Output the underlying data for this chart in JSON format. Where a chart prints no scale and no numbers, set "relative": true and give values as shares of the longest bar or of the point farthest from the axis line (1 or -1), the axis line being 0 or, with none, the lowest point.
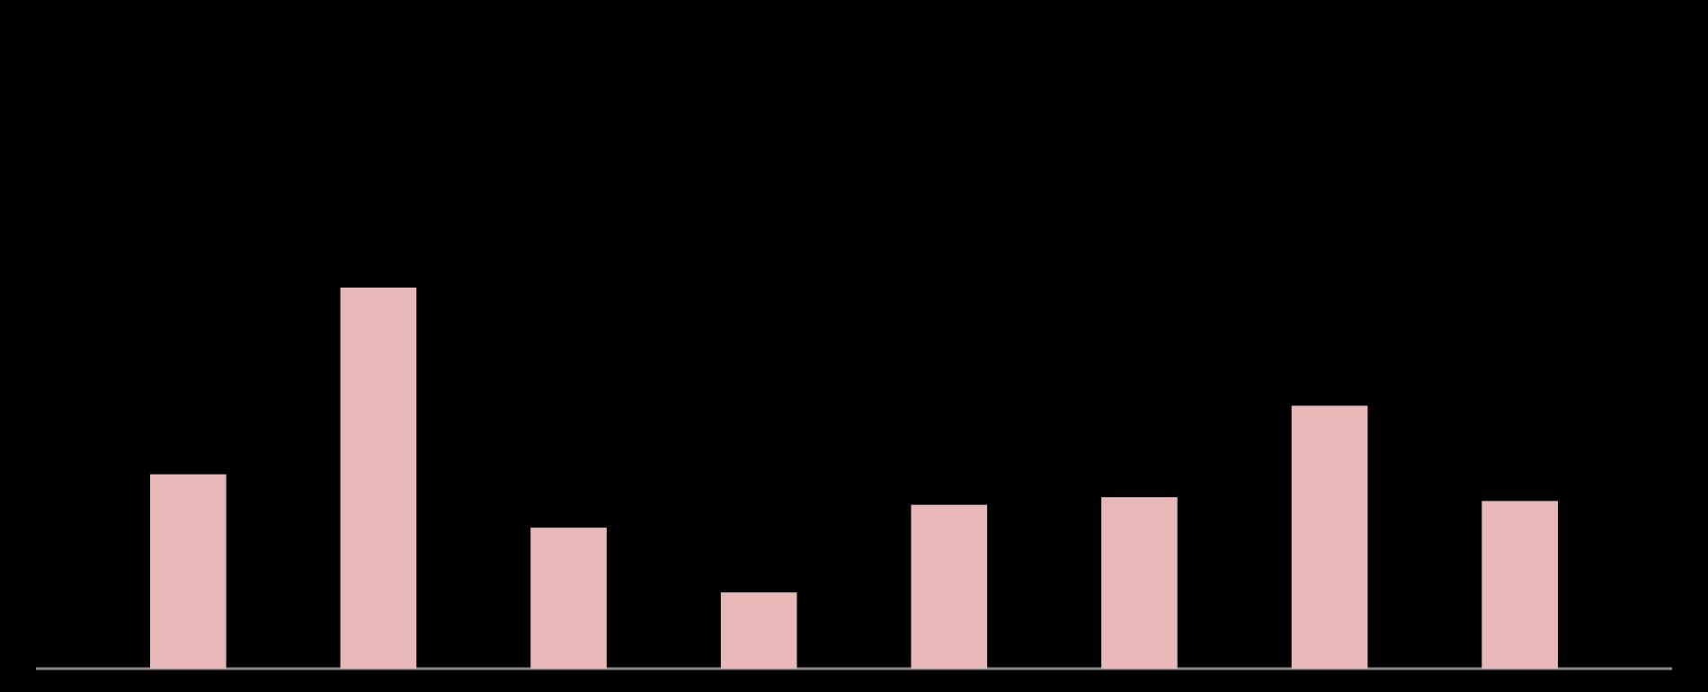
{
  "chart_data": {
    "type": "bar",
    "relative": true,
    "categories": [
      null,
      null,
      null,
      null,
      null,
      null,
      null,
      null
    ],
    "values": [
      0.51,
      1,
      0.37,
      0.2,
      0.43,
      0.45,
      0.69,
      0.44
    ],
    "color": "#e8b8b8"
  }
}
